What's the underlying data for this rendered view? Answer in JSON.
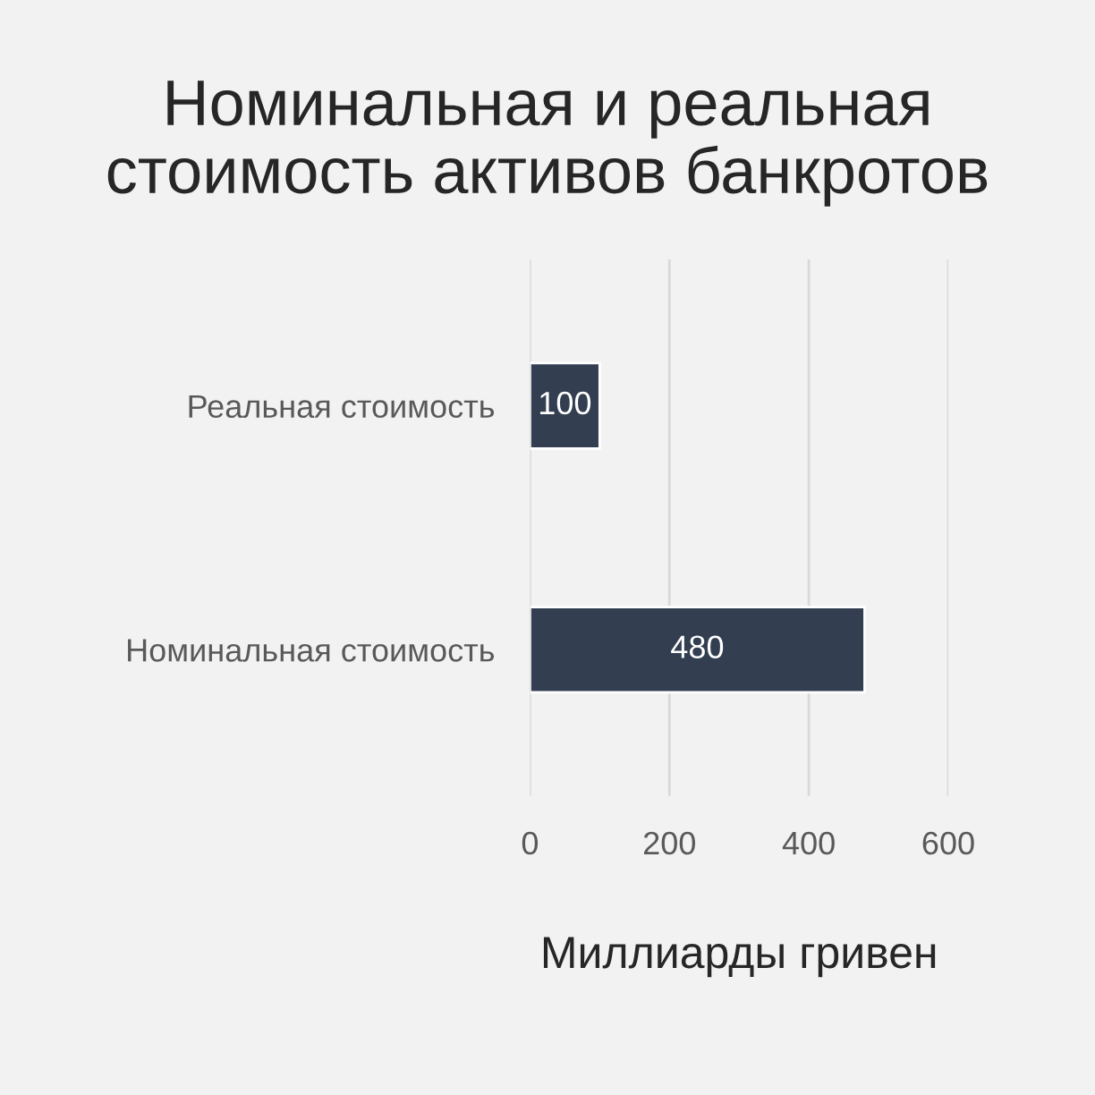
{
  "chart_data": {
    "type": "bar",
    "orientation": "horizontal",
    "title": "Номинальная и реальная\nстоимость активов банкротов",
    "xlabel": "Миллиарды гривен",
    "categories": [
      "Реальная стоимость",
      "Номинальная стоимость"
    ],
    "values": [
      100,
      480
    ],
    "color": "#333f50",
    "xlim": [
      0,
      600
    ],
    "xticks": [
      0,
      200,
      400,
      600
    ],
    "grid": "x",
    "data_labels": true,
    "legend": false
  }
}
